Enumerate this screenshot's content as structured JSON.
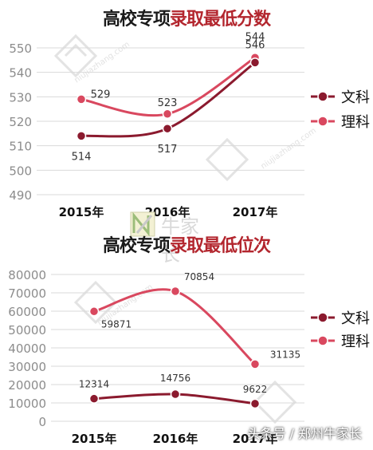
{
  "colors": {
    "wenke": "#8b1a2e",
    "like": "#d9485f",
    "axis_text": "#8c8c8c",
    "grid": "#d9d9d9"
  },
  "chart_data": [
    {
      "type": "line",
      "title_prefix": "高校专项",
      "title_suffix": "录取最低分数",
      "categories": [
        "2015年",
        "2016年",
        "2017年"
      ],
      "ylim": [
        490,
        550
      ],
      "yticks": [
        "550",
        "540",
        "530",
        "520",
        "510",
        "500",
        "490"
      ],
      "legend": "right",
      "series": [
        {
          "name": "文科",
          "values": [
            514,
            517,
            544
          ]
        },
        {
          "name": "理科",
          "values": [
            529,
            523,
            546
          ]
        }
      ]
    },
    {
      "type": "line",
      "title_prefix": "高校专项",
      "title_suffix": "录取最低位次",
      "categories": [
        "2015年",
        "2016年",
        "2017年"
      ],
      "ylim": [
        0,
        80000
      ],
      "yticks": [
        "80000",
        "70000",
        "60000",
        "50000",
        "40000",
        "30000",
        "20000",
        "10000",
        "0"
      ],
      "legend": "right",
      "series": [
        {
          "name": "文科",
          "values": [
            12314,
            14756,
            9622
          ]
        },
        {
          "name": "理科",
          "values": [
            59871,
            70854,
            31135
          ]
        }
      ]
    }
  ],
  "watermark": {
    "brand": "牛家长",
    "url": "niujiazhang.com"
  },
  "footer": "头条号 / 郑州牛家长"
}
